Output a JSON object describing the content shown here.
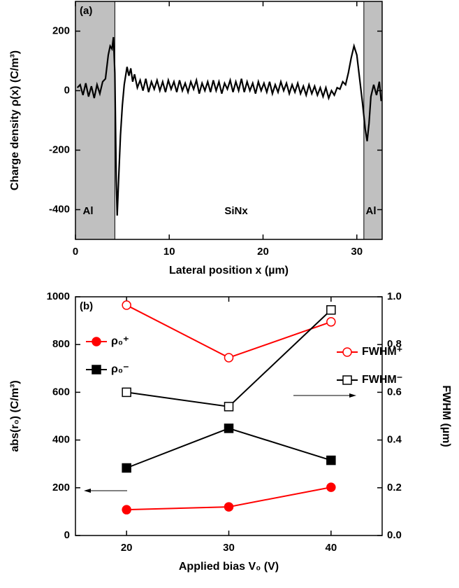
{
  "chart_data": [
    {
      "type": "line",
      "panel_label": "(a)",
      "x_label": "Lateral position x (µm)",
      "y_label": "Charge density ρ(x) (C/m³)",
      "annotations": [
        "Al",
        "SiNx",
        "Al"
      ],
      "regions": [
        {
          "start": 0,
          "end": 4.2,
          "color": "#c0c0c0"
        },
        {
          "start": 30.75,
          "end": 32.7,
          "color": "#c0c0c0"
        }
      ],
      "xlim": [
        0,
        32.7
      ],
      "xticks": [
        0,
        10,
        20,
        30
      ],
      "ylim": [
        -500,
        300
      ],
      "yticks": [
        -400,
        -200,
        0,
        200
      ],
      "x": [
        0.2,
        0.5,
        0.8,
        1.1,
        1.4,
        1.7,
        2.0,
        2.3,
        2.6,
        2.9,
        3.2,
        3.5,
        3.7,
        3.9,
        4.05,
        4.2,
        4.35,
        4.45,
        4.6,
        4.8,
        5.0,
        5.2,
        5.5,
        5.7,
        5.9,
        6.1,
        6.3,
        6.6,
        6.9,
        7.2,
        7.5,
        7.8,
        8.1,
        8.4,
        8.7,
        9.0,
        9.3,
        9.6,
        9.9,
        10.2,
        10.5,
        10.8,
        11.1,
        11.4,
        11.7,
        12.0,
        12.3,
        12.6,
        12.9,
        13.2,
        13.5,
        13.8,
        14.1,
        14.4,
        14.7,
        15.0,
        15.3,
        15.6,
        15.9,
        16.2,
        16.5,
        16.8,
        17.1,
        17.4,
        17.7,
        18.0,
        18.3,
        18.6,
        18.9,
        19.2,
        19.5,
        19.8,
        20.1,
        20.4,
        20.7,
        21.0,
        21.3,
        21.6,
        21.9,
        22.2,
        22.5,
        22.8,
        23.1,
        23.4,
        23.7,
        24.0,
        24.3,
        24.6,
        24.9,
        25.2,
        25.5,
        25.8,
        26.1,
        26.4,
        26.7,
        27.0,
        27.3,
        27.6,
        27.9,
        28.2,
        28.5,
        28.8,
        29.1,
        29.4,
        29.7,
        30.0,
        30.3,
        30.6,
        30.9,
        31.1,
        31.3,
        31.5,
        31.8,
        32.1,
        32.4,
        32.6
      ],
      "series": [
        {
          "color": "#000000",
          "values": [
            10,
            20,
            -15,
            25,
            -20,
            15,
            -25,
            20,
            -10,
            30,
            40,
            120,
            150,
            140,
            180,
            60,
            -300,
            -420,
            -300,
            -150,
            -50,
            20,
            80,
            50,
            75,
            30,
            55,
            10,
            35,
            0,
            40,
            -5,
            30,
            5,
            35,
            0,
            30,
            -5,
            35,
            5,
            30,
            -5,
            35,
            0,
            25,
            -5,
            30,
            5,
            35,
            -10,
            25,
            0,
            30,
            -5,
            35,
            0,
            30,
            -10,
            25,
            5,
            35,
            -5,
            30,
            0,
            40,
            -5,
            30,
            0,
            25,
            -10,
            30,
            0,
            25,
            -5,
            30,
            -10,
            20,
            -5,
            30,
            0,
            25,
            -10,
            20,
            -5,
            25,
            -10,
            15,
            -15,
            20,
            -10,
            15,
            -15,
            10,
            -20,
            10,
            -25,
            0,
            -15,
            10,
            5,
            30,
            20,
            60,
            110,
            150,
            120,
            40,
            -40,
            -130,
            -170,
            -110,
            -20,
            20,
            -15,
            30,
            -35
          ]
        }
      ]
    },
    {
      "type": "line",
      "panel_label": "(b)",
      "x_label": "Applied bias V₀ (V)",
      "y_label": "abs(r₀) (C/m³)",
      "y2_label": "FWHM (µm)",
      "xlim": [
        15,
        45
      ],
      "xticks": [
        20,
        30,
        40
      ],
      "ylim": [
        0,
        1000
      ],
      "yticks": [
        0,
        200,
        400,
        600,
        800,
        1000
      ],
      "y2lim": [
        0,
        1
      ],
      "y2ticks": [
        {
          "value": 0,
          "label": "0.0"
        },
        0.2,
        0.4,
        0.6,
        0.8,
        {
          "value": 1,
          "label": "1.0"
        }
      ],
      "x": [
        20,
        30,
        40
      ],
      "series": [
        {
          "name": "ρ₀⁺",
          "color": "#ff0000",
          "marker": "circle",
          "filled": true,
          "values": [
            108,
            120,
            202
          ]
        },
        {
          "name": "ρ₀⁻",
          "color": "#000000",
          "marker": "square",
          "filled": true,
          "values": [
            283,
            449,
            315
          ]
        },
        {
          "name": "FWHM⁺",
          "color": "#ff0000",
          "marker": "circle",
          "filled": false,
          "axis": "y2",
          "values": [
            0.965,
            0.745,
            0.895
          ]
        },
        {
          "name": "FWHM⁻",
          "color": "#000000",
          "marker": "square",
          "filled": false,
          "axis": "y2",
          "values": [
            0.6,
            0.54,
            0.945
          ]
        }
      ]
    }
  ]
}
